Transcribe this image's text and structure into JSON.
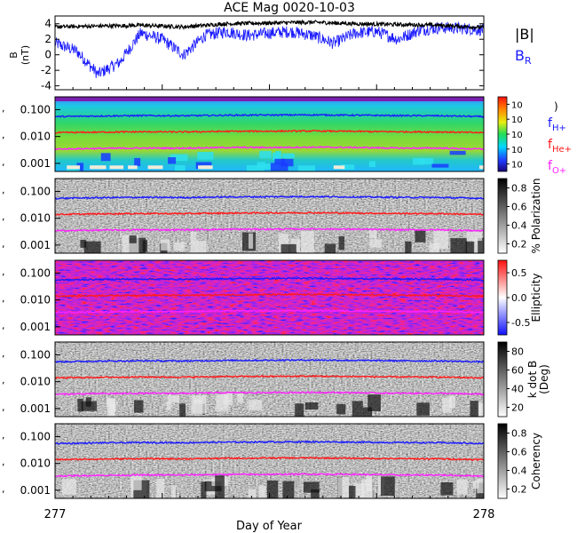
{
  "title": "ACE Mag 0020-10-03",
  "x_axis": {
    "label": "Day of Year",
    "start_label": "277",
    "end_label": "278",
    "range": [
      277,
      278
    ]
  },
  "colors": {
    "black": "#000000",
    "blue": "#1a1aff",
    "red": "#ff1a1a",
    "magenta": "#ff22ff"
  },
  "panels": [
    {
      "key": "mag",
      "ylabel": "B (nT)",
      "ylabel_top": "B",
      "ylabel_bottom": "(nT)",
      "yticks": [
        {
          "v": 4,
          "label": "4"
        },
        {
          "v": 2,
          "label": "2"
        },
        {
          "v": 0,
          "label": "0"
        },
        {
          "v": -2,
          "label": "-2"
        },
        {
          "v": -4,
          "label": "-4"
        }
      ],
      "legend": [
        {
          "label": "|B|",
          "color": "#000000"
        },
        {
          "label": "B",
          "sub": "R",
          "color": "#1a1aff"
        }
      ]
    },
    {
      "key": "power",
      "kind": "spectrogram-color",
      "yticks": [
        {
          "label": "0.100"
        },
        {
          "label": "0.010"
        },
        {
          "label": "0.001"
        }
      ],
      "colorbar_ticks": [
        "10",
        "10",
        "10",
        "10",
        "10"
      ],
      "colorbar_paren": ")",
      "legend": [
        {
          "label": "f",
          "sub": "H+",
          "color": "#1a1aff"
        },
        {
          "label": "f",
          "sub": "He+",
          "color": "#ff1a1a"
        },
        {
          "label": "f",
          "sub": "O+",
          "color": "#ff22ff"
        }
      ]
    },
    {
      "key": "polarization",
      "kind": "spectrogram-gray",
      "yticks": [
        {
          "label": "0.100"
        },
        {
          "label": "0.010"
        },
        {
          "label": "0.001"
        }
      ],
      "colorbar_ticks": [
        "0.8",
        "0.6",
        "0.4",
        "0.2"
      ],
      "colorbar_label": "% Polarization"
    },
    {
      "key": "ellipticity",
      "kind": "spectrogram-bwr",
      "yticks": [
        {
          "label": "0.100"
        },
        {
          "label": "0.010"
        },
        {
          "label": "0.001"
        }
      ],
      "colorbar_ticks": [
        "0.5",
        "0.0",
        "-0.5"
      ],
      "colorbar_label": "Ellipticity"
    },
    {
      "key": "kdotb",
      "kind": "spectrogram-gray",
      "yticks": [
        {
          "label": "0.100"
        },
        {
          "label": "0.010"
        },
        {
          "label": "0.001"
        }
      ],
      "colorbar_ticks": [
        "80",
        "60",
        "40",
        "20"
      ],
      "colorbar_label": "k dot B",
      "colorbar_label2": "(Deg)"
    },
    {
      "key": "coherency",
      "kind": "spectrogram-gray",
      "yticks": [
        {
          "label": "0.100"
        },
        {
          "label": "0.010"
        },
        {
          "label": "0.001"
        }
      ],
      "colorbar_ticks": [
        "0.8",
        "0.6",
        "0.4",
        "0.2"
      ],
      "colorbar_label": "Coherency"
    }
  ],
  "chart_data": {
    "type": "line",
    "title": "ACE Mag 0020-10-03",
    "xlabel": "Day of Year",
    "xlim": [
      277,
      278
    ],
    "ylim_mag": [
      -4.5,
      5
    ],
    "yscale_freq": "log",
    "ylim_freq": [
      0.0005,
      0.3
    ],
    "series": [
      {
        "name": "|B|",
        "panel": "mag",
        "color": "#000000",
        "x": [
          277.0,
          277.1,
          277.2,
          277.3,
          277.4,
          277.5,
          277.6,
          277.7,
          277.8,
          277.9,
          278.0
        ],
        "y": [
          3.6,
          3.7,
          3.8,
          3.6,
          4.0,
          4.1,
          4.2,
          4.0,
          3.9,
          3.8,
          3.5
        ]
      },
      {
        "name": "B",
        "subscript": "R",
        "panel": "mag",
        "color": "#1a1aff",
        "x": [
          277.0,
          277.05,
          277.1,
          277.15,
          277.2,
          277.25,
          277.3,
          277.35,
          277.4,
          277.45,
          277.5,
          277.55,
          277.6,
          277.65,
          277.7,
          277.75,
          277.8,
          277.85,
          277.9,
          277.95,
          278.0
        ],
        "y": [
          1.5,
          0.5,
          -2.5,
          -1.0,
          2.8,
          2.0,
          0.0,
          2.5,
          3.0,
          2.5,
          2.8,
          3.0,
          2.5,
          1.5,
          2.8,
          3.0,
          2.0,
          3.2,
          3.5,
          3.4,
          3.2
        ]
      },
      {
        "name": "f",
        "subscript": "H+",
        "panel": "frequency",
        "color": "#1a1aff",
        "x": [
          277.0,
          277.1,
          277.2,
          277.3,
          277.4,
          277.5,
          277.6,
          277.7,
          277.8,
          277.9,
          278.0
        ],
        "y": [
          0.055,
          0.058,
          0.06,
          0.059,
          0.062,
          0.063,
          0.064,
          0.062,
          0.06,
          0.059,
          0.055
        ]
      },
      {
        "name": "f",
        "subscript": "He+",
        "panel": "frequency",
        "color": "#ff1a1a",
        "x": [
          277.0,
          277.1,
          277.2,
          277.3,
          277.4,
          277.5,
          277.6,
          277.7,
          277.8,
          277.9,
          278.0
        ],
        "y": [
          0.0138,
          0.0145,
          0.015,
          0.0148,
          0.0155,
          0.0158,
          0.016,
          0.0155,
          0.015,
          0.0148,
          0.0138
        ]
      },
      {
        "name": "f",
        "subscript": "O+",
        "panel": "frequency",
        "color": "#ff22ff",
        "x": [
          277.0,
          277.1,
          277.2,
          277.3,
          277.4,
          277.5,
          277.6,
          277.7,
          277.8,
          277.9,
          278.0
        ],
        "y": [
          0.0034,
          0.0036,
          0.0037,
          0.0037,
          0.0039,
          0.0039,
          0.004,
          0.0039,
          0.0037,
          0.0037,
          0.0034
        ]
      }
    ]
  }
}
